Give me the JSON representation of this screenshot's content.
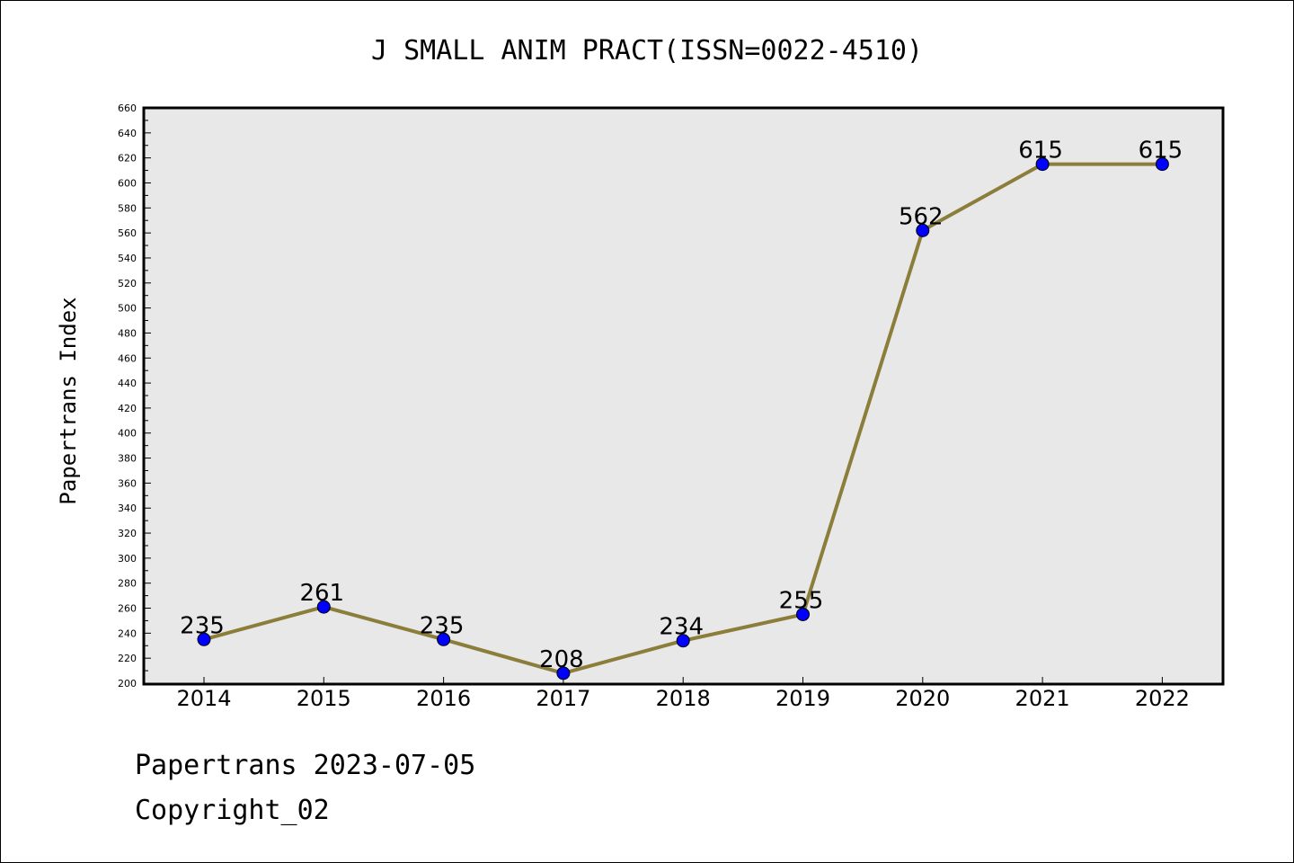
{
  "chart_data": {
    "type": "line",
    "title": "J SMALL ANIM PRACT(ISSN=0022-4510)",
    "ylabel": "Papertrans Index",
    "xlabel": "",
    "categories": [
      "2014",
      "2015",
      "2016",
      "2017",
      "2018",
      "2019",
      "2020",
      "2021",
      "2022"
    ],
    "series": [
      {
        "values": [
          235,
          261,
          235,
          208,
          234,
          255,
          562,
          615,
          615
        ]
      }
    ],
    "data_labels": [
      "235",
      "261",
      "235",
      "208",
      "234",
      "255",
      "562",
      "615",
      "615"
    ],
    "ylim": [
      200,
      660
    ],
    "ytick_step": 20,
    "grid": false,
    "legend": "none",
    "colors": {
      "line": "#8b7d3a",
      "marker": "#0000ff",
      "plot_background": "#e8e8e8"
    }
  },
  "footer": {
    "line1": "Papertrans 2023-07-05",
    "line2": "Copyright_02"
  }
}
